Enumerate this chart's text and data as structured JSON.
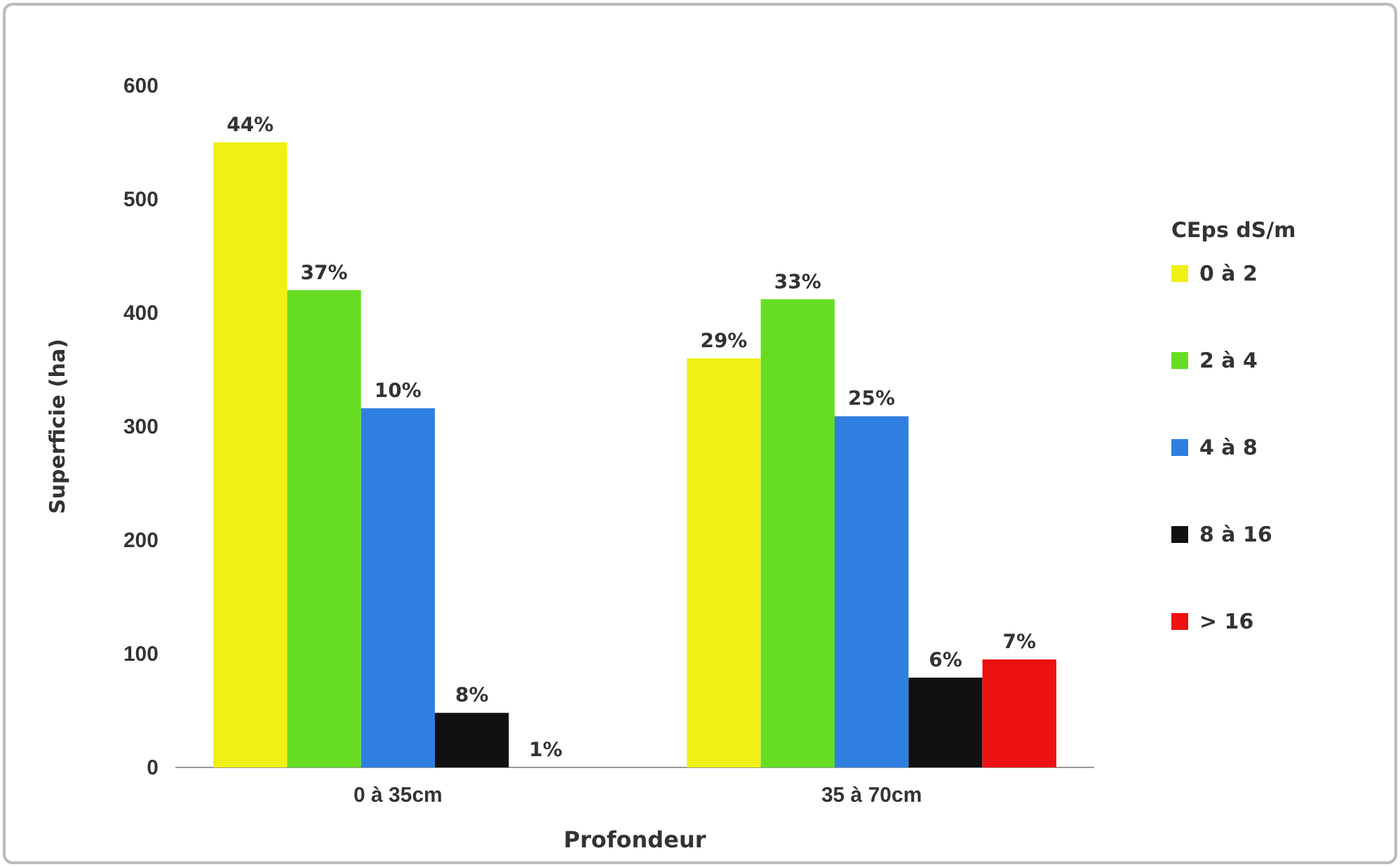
{
  "chart_data": {
    "type": "bar",
    "xlabel": "Profondeur",
    "ylabel": "Superficie (ha)",
    "legend_title": "CEps dS/m",
    "legend": "right",
    "grid": false,
    "categories": [
      "0 à 35cm",
      "35 à 70cm"
    ],
    "ylim": [
      0,
      600
    ],
    "yticks": [
      0,
      100,
      200,
      300,
      400,
      500,
      600
    ],
    "series": [
      {
        "name": "0 à 2",
        "color": "#f0f014",
        "values": [
          550,
          360
        ]
      },
      {
        "name": "2 à 4",
        "color": "#66dd22",
        "values": [
          420,
          412
        ]
      },
      {
        "name": "4 à 8",
        "color": "#2f7fe0",
        "values": [
          316,
          309
        ]
      },
      {
        "name": "8 à 16",
        "color": "#111111",
        "values": [
          48,
          79
        ]
      },
      {
        "name": "> 16",
        "color": "#ee1111",
        "values": [
          0,
          95
        ]
      }
    ],
    "annotations": [
      "44%",
      "29%",
      "37%",
      "33%",
      "10%",
      "25%",
      "8%",
      "6%",
      "1%",
      "7%"
    ]
  }
}
